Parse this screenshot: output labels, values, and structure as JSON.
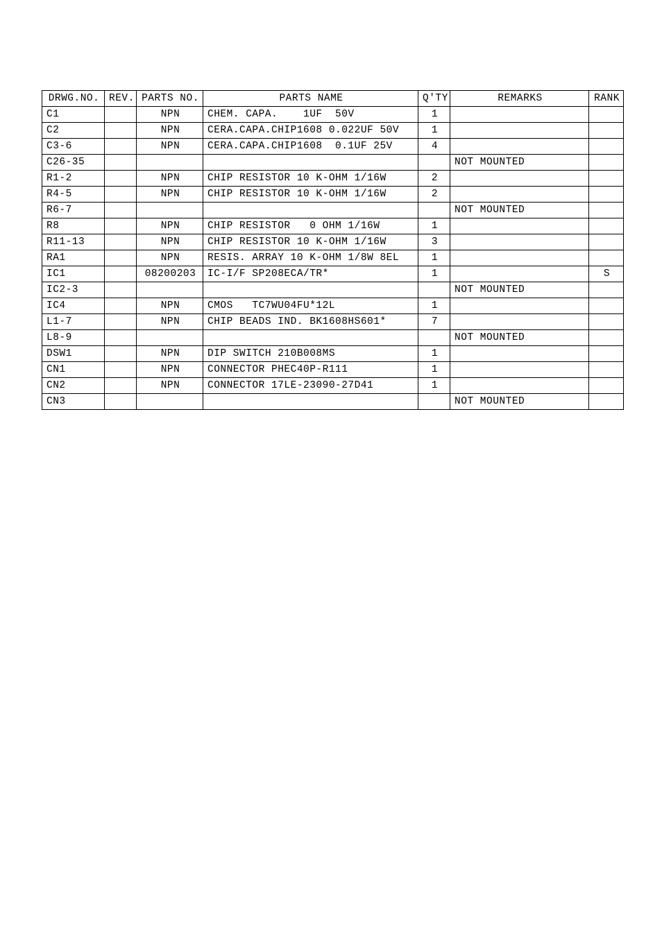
{
  "table": {
    "headers": {
      "drwg": "DRWG.NO.",
      "rev": "REV.",
      "parts_no": "PARTS NO.",
      "parts_name": "PARTS NAME",
      "qty": "Q'TY",
      "remarks": "REMARKS",
      "rank": "RANK"
    },
    "rows": [
      {
        "drwg": "C1",
        "rev": "",
        "pno": "NPN",
        "pname": "CHEM. CAPA.    1UF  50V",
        "qty": "1",
        "rem": "",
        "rank": ""
      },
      {
        "drwg": "C2",
        "rev": "",
        "pno": "NPN",
        "pname": "CERA.CAPA.CHIP1608 0.022UF 50V",
        "qty": "1",
        "rem": "",
        "rank": ""
      },
      {
        "drwg": "C3-6",
        "rev": "",
        "pno": "NPN",
        "pname": "CERA.CAPA.CHIP1608  0.1UF 25V",
        "qty": "4",
        "rem": "",
        "rank": ""
      },
      {
        "drwg": "C26-35",
        "rev": "",
        "pno": "",
        "pname": "",
        "qty": "",
        "rem": "NOT MOUNTED",
        "rank": ""
      },
      {
        "drwg": "R1-2",
        "rev": "",
        "pno": "NPN",
        "pname": "CHIP RESISTOR 10 K-OHM 1/16W",
        "qty": "2",
        "rem": "",
        "rank": ""
      },
      {
        "drwg": "R4-5",
        "rev": "",
        "pno": "NPN",
        "pname": "CHIP RESISTOR 10 K-OHM 1/16W",
        "qty": "2",
        "rem": "",
        "rank": ""
      },
      {
        "drwg": "R6-7",
        "rev": "",
        "pno": "",
        "pname": "",
        "qty": "",
        "rem": "NOT MOUNTED",
        "rank": ""
      },
      {
        "drwg": "R8",
        "rev": "",
        "pno": "NPN",
        "pname": "CHIP RESISTOR   0 OHM 1/16W",
        "qty": "1",
        "rem": "",
        "rank": ""
      },
      {
        "drwg": "R11-13",
        "rev": "",
        "pno": "NPN",
        "pname": "CHIP RESISTOR 10 K-OHM 1/16W",
        "qty": "3",
        "rem": "",
        "rank": ""
      },
      {
        "drwg": "RA1",
        "rev": "",
        "pno": "NPN",
        "pname": "RESIS. ARRAY 10 K-OHM 1/8W 8EL",
        "qty": "1",
        "rem": "",
        "rank": ""
      },
      {
        "drwg": "IC1",
        "rev": "",
        "pno": "08200203",
        "pname": "IC-I/F SP208ECA/TR*",
        "qty": "1",
        "rem": "",
        "rank": "S"
      },
      {
        "drwg": "IC2-3",
        "rev": "",
        "pno": "",
        "pname": "",
        "qty": "",
        "rem": "NOT MOUNTED",
        "rank": ""
      },
      {
        "drwg": "IC4",
        "rev": "",
        "pno": "NPN",
        "pname": "CMOS   TC7WU04FU*12L",
        "qty": "1",
        "rem": "",
        "rank": ""
      },
      {
        "drwg": "L1-7",
        "rev": "",
        "pno": "NPN",
        "pname": "CHIP BEADS IND. BK1608HS601*",
        "qty": "7",
        "rem": "",
        "rank": ""
      },
      {
        "drwg": "L8-9",
        "rev": "",
        "pno": "",
        "pname": "",
        "qty": "",
        "rem": "NOT MOUNTED",
        "rank": ""
      },
      {
        "drwg": "DSW1",
        "rev": "",
        "pno": "NPN",
        "pname": "DIP SWITCH 210B008MS",
        "qty": "1",
        "rem": "",
        "rank": ""
      },
      {
        "drwg": "CN1",
        "rev": "",
        "pno": "NPN",
        "pname": "CONNECTOR PHEC40P-R111",
        "qty": "1",
        "rem": "",
        "rank": ""
      },
      {
        "drwg": "CN2",
        "rev": "",
        "pno": "NPN",
        "pname": "CONNECTOR 17LE-23090-27D41",
        "qty": "1",
        "rem": "",
        "rank": ""
      },
      {
        "drwg": "CN3",
        "rev": "",
        "pno": "",
        "pname": "",
        "qty": "",
        "rem": "NOT MOUNTED",
        "rank": ""
      }
    ]
  }
}
